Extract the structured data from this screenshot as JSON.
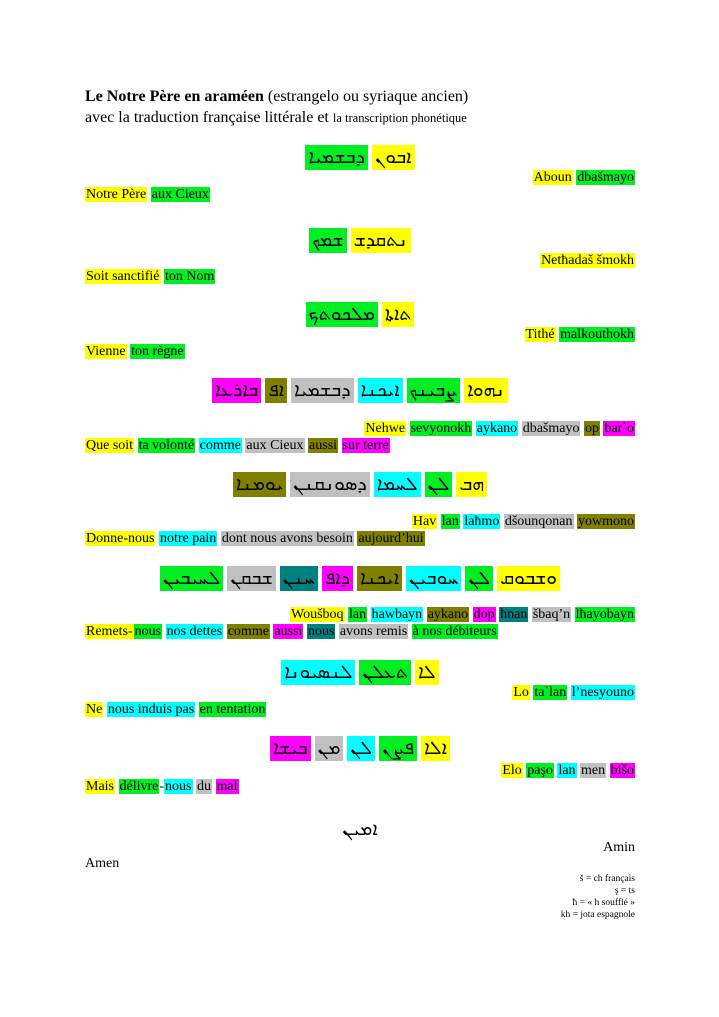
{
  "title": {
    "bold": "Le Notre Père en araméen",
    "rest": " (estrangelo ou syriaque ancien)",
    "line2": "avec la traduction française littérale et ",
    "line2_small": "la transcription phonétique"
  },
  "colors": {
    "yellow": "#ffff00",
    "green": "#00ee22",
    "cyan": "#00ffff",
    "gray": "#c0c0c0",
    "olive": "#808000",
    "magenta": "#ff00ff",
    "teal": "#008080"
  },
  "verses": [
    {
      "syriac": [
        {
          "t": "ܐܒܘܢ",
          "c": "yellow"
        },
        {
          "t": "ܕܒܫܡܝܐ",
          "c": "green"
        }
      ],
      "translit": [
        {
          "t": "Aboun",
          "c": "yellow"
        },
        {
          "t": " ",
          "c": "none"
        },
        {
          "t": "dbašmayo",
          "c": "green"
        }
      ],
      "french": [
        {
          "t": "Notre Père",
          "c": "yellow"
        },
        {
          "t": " ",
          "c": "none"
        },
        {
          "t": "aux Cieux",
          "c": "green"
        }
      ]
    },
    {
      "syriac": [
        {
          "t": "ܢܬܩܕܫ",
          "c": "yellow"
        },
        {
          "t": "ܫܡܟ",
          "c": "green"
        }
      ],
      "translit": [
        {
          "t": "Netħadaš šmokh",
          "c": "yellow"
        }
      ],
      "french": [
        {
          "t": "Soit sanctifié",
          "c": "yellow"
        },
        {
          "t": " ",
          "c": "none"
        },
        {
          "t": "ton Nom",
          "c": "green"
        }
      ]
    },
    {
      "syriac": [
        {
          "t": "ܬܐܬܐ",
          "c": "yellow"
        },
        {
          "t": "ܡܠܟܘܬܟ",
          "c": "green"
        }
      ],
      "translit": [
        {
          "t": "Tithé",
          "c": "yellow"
        },
        {
          "t": " ",
          "c": "none"
        },
        {
          "t": "malkouthokh",
          "c": "green"
        }
      ],
      "french": [
        {
          "t": "Vienne",
          "c": "yellow"
        },
        {
          "t": " ",
          "c": "none"
        },
        {
          "t": "ton règne",
          "c": "green"
        }
      ]
    },
    {
      "syriac": [
        {
          "t": "ܢܗܘܐ",
          "c": "yellow"
        },
        {
          "t": "ܨܒܝܢܟ",
          "c": "green"
        },
        {
          "t": "ܐܝܟܢܐ",
          "c": "cyan"
        },
        {
          "t": "ܕܒܫܡܝܐ",
          "c": "gray"
        },
        {
          "t": "ܐܦ",
          "c": "olive"
        },
        {
          "t": "ܒܐܪܥܐ",
          "c": "magenta"
        }
      ],
      "translit": [
        {
          "t": "Nehwe",
          "c": "yellow"
        },
        {
          "t": " ",
          "c": "none"
        },
        {
          "t": "sevyonokh",
          "c": "green"
        },
        {
          "t": " ",
          "c": "none"
        },
        {
          "t": "aykano",
          "c": "cyan"
        },
        {
          "t": " ",
          "c": "none"
        },
        {
          "t": "dbašmayo",
          "c": "gray"
        },
        {
          "t": " ",
          "c": "none"
        },
        {
          "t": "op",
          "c": "olive"
        },
        {
          "t": " ",
          "c": "none"
        },
        {
          "t": "bar`o",
          "c": "magenta"
        }
      ],
      "french": [
        {
          "t": "Que soit",
          "c": "yellow"
        },
        {
          "t": " ",
          "c": "none"
        },
        {
          "t": "ta volonté",
          "c": "green"
        },
        {
          "t": " ",
          "c": "none"
        },
        {
          "t": "comme",
          "c": "cyan"
        },
        {
          "t": " ",
          "c": "none"
        },
        {
          "t": "aux Cieux",
          "c": "gray"
        },
        {
          "t": " ",
          "c": "none"
        },
        {
          "t": "aussi",
          "c": "olive"
        },
        {
          "t": " ",
          "c": "none"
        },
        {
          "t": "sur terre",
          "c": "magenta"
        }
      ]
    },
    {
      "syriac": [
        {
          "t": "ܗܒ",
          "c": "yellow"
        },
        {
          "t": "ܠܢ",
          "c": "green"
        },
        {
          "t": "ܠܚܡܐ",
          "c": "cyan"
        },
        {
          "t": "ܕܣܘܢܩܢܢ",
          "c": "gray"
        },
        {
          "t": "ܝܘܡܢܐ",
          "c": "olive"
        }
      ],
      "translit": [
        {
          "t": "Hav",
          "c": "yellow"
        },
        {
          "t": " ",
          "c": "none"
        },
        {
          "t": "lan",
          "c": "green"
        },
        {
          "t": " ",
          "c": "none"
        },
        {
          "t": "laħmo",
          "c": "cyan"
        },
        {
          "t": " ",
          "c": "none"
        },
        {
          "t": "dšounqonan",
          "c": "gray"
        },
        {
          "t": " ",
          "c": "none"
        },
        {
          "t": "yowmono",
          "c": "olive"
        }
      ],
      "french": [
        {
          "t": "Donne-nous",
          "c": "yellow"
        },
        {
          "t": " ",
          "c": "none"
        },
        {
          "t": "notre pain",
          "c": "cyan"
        },
        {
          "t": " ",
          "c": "none"
        },
        {
          "t": "dont nous avons besoin",
          "c": "gray"
        },
        {
          "t": " ",
          "c": "none"
        },
        {
          "t": "aujourd’hui",
          "c": "olive"
        }
      ]
    },
    {
      "syriac": [
        {
          "t": "ܘܫܒܘܩ",
          "c": "yellow"
        },
        {
          "t": "ܠܢ",
          "c": "green"
        },
        {
          "t": "ܚܘܒܝܢ",
          "c": "cyan"
        },
        {
          "t": "ܐܝܟܢܐ",
          "c": "olive"
        },
        {
          "t": "ܕܐܦ",
          "c": "magenta"
        },
        {
          "t": "ܚܢܢ",
          "c": "teal"
        },
        {
          "t": "ܫܒܩܢ",
          "c": "gray"
        },
        {
          "t": "ܠܚܝܒܝܢ",
          "c": "green"
        }
      ],
      "translit": [
        {
          "t": "Woušboq",
          "c": "yellow"
        },
        {
          "t": " ",
          "c": "none"
        },
        {
          "t": "lan",
          "c": "green"
        },
        {
          "t": " ",
          "c": "none"
        },
        {
          "t": "hawbayn",
          "c": "cyan"
        },
        {
          "t": " ",
          "c": "none"
        },
        {
          "t": "aykano",
          "c": "olive"
        },
        {
          "t": " ",
          "c": "none"
        },
        {
          "t": "dop",
          "c": "magenta"
        },
        {
          "t": " ",
          "c": "none"
        },
        {
          "t": "ħnan",
          "c": "teal"
        },
        {
          "t": " ",
          "c": "none"
        },
        {
          "t": "šbaq’n",
          "c": "gray"
        },
        {
          "t": " ",
          "c": "none"
        },
        {
          "t": "lħayobayn",
          "c": "green"
        }
      ],
      "french": [
        {
          "t": "Remets-",
          "c": "yellow"
        },
        {
          "t": "nous",
          "c": "green"
        },
        {
          "t": " ",
          "c": "none"
        },
        {
          "t": "nos dettes",
          "c": "cyan"
        },
        {
          "t": " ",
          "c": "none"
        },
        {
          "t": "comme",
          "c": "olive"
        },
        {
          "t": " ",
          "c": "none"
        },
        {
          "t": "aussi",
          "c": "magenta"
        },
        {
          "t": " ",
          "c": "none"
        },
        {
          "t": "nous",
          "c": "teal"
        },
        {
          "t": " ",
          "c": "none"
        },
        {
          "t": "avons remis",
          "c": "gray"
        },
        {
          "t": " ",
          "c": "none"
        },
        {
          "t": "à nos débiteurs",
          "c": "green"
        }
      ]
    },
    {
      "syriac": [
        {
          "t": "ܠܐ",
          "c": "yellow"
        },
        {
          "t": "ܬܥܠܢ",
          "c": "green"
        },
        {
          "t": "ܠܢܣܝܘܢܐ",
          "c": "cyan"
        }
      ],
      "translit": [
        {
          "t": "Lo",
          "c": "yellow"
        },
        {
          "t": " ",
          "c": "none"
        },
        {
          "t": "ta`lan",
          "c": "green"
        },
        {
          "t": " ",
          "c": "none"
        },
        {
          "t": "l’nesyouno",
          "c": "cyan"
        }
      ],
      "french": [
        {
          "t": "Ne",
          "c": "yellow"
        },
        {
          "t": " ",
          "c": "none"
        },
        {
          "t": "nous induis pas",
          "c": "cyan"
        },
        {
          "t": " ",
          "c": "none"
        },
        {
          "t": "en tentation",
          "c": "green"
        }
      ]
    },
    {
      "syriac": [
        {
          "t": "ܐܠܐ",
          "c": "yellow"
        },
        {
          "t": "ܦܨܢ",
          "c": "green"
        },
        {
          "t": "ܠܢ",
          "c": "cyan"
        },
        {
          "t": "ܡܢ",
          "c": "gray"
        },
        {
          "t": "ܒܝܫܐ",
          "c": "magenta"
        }
      ],
      "translit": [
        {
          "t": "Elo",
          "c": "yellow"
        },
        {
          "t": " ",
          "c": "none"
        },
        {
          "t": "paşo",
          "c": "green"
        },
        {
          "t": " ",
          "c": "none"
        },
        {
          "t": "lan",
          "c": "cyan"
        },
        {
          "t": " ",
          "c": "none"
        },
        {
          "t": "men",
          "c": "gray"
        },
        {
          "t": " ",
          "c": "none"
        },
        {
          "t": "bišo",
          "c": "magenta"
        }
      ],
      "french": [
        {
          "t": "Mais",
          "c": "yellow"
        },
        {
          "t": " ",
          "c": "none"
        },
        {
          "t": "délivre",
          "c": "green"
        },
        {
          "t": "-",
          "c": "none"
        },
        {
          "t": "nous",
          "c": "cyan"
        },
        {
          "t": " ",
          "c": "none"
        },
        {
          "t": "du",
          "c": "gray"
        },
        {
          "t": " ",
          "c": "none"
        },
        {
          "t": "mal",
          "c": "magenta"
        }
      ]
    },
    {
      "syriac": [
        {
          "t": "ܐܡܝܢ",
          "c": "none"
        }
      ],
      "translit": [
        {
          "t": "Amin",
          "c": "none"
        }
      ],
      "french": [
        {
          "t": "Amen",
          "c": "none"
        }
      ]
    }
  ],
  "notes": [
    "š = ch français",
    "ş = ts",
    "ħ = « h soufflé »",
    "kh = jota espagnole"
  ]
}
